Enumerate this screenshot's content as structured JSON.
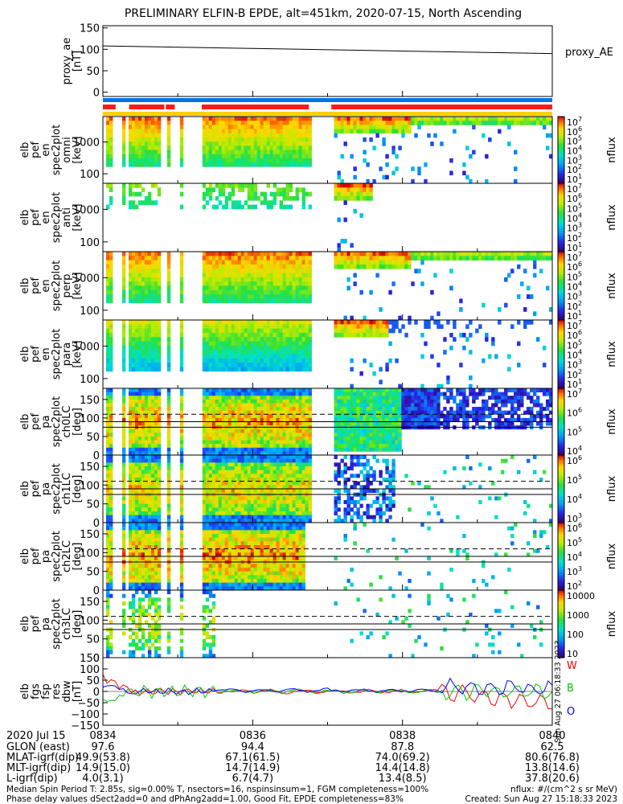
{
  "title": "PRELIMINARY ELFIN-B EPDE, alt=451km, 2020-07-15, North Ascending",
  "time_span_minutes": [
    0,
    6
  ],
  "chart_data": [
    {
      "type": "line",
      "ylabel": [
        "proxy_ae",
        "[nT]"
      ],
      "yticks": [
        "150",
        "100",
        "50",
        "0"
      ],
      "ylim": [
        -10,
        155
      ],
      "series": [
        {
          "name": "proxy_AE",
          "x": [
            0,
            6
          ],
          "values": [
            108,
            90
          ]
        }
      ]
    },
    {
      "type": "heatmap",
      "ylabel": [
        "elb",
        "pef",
        "en",
        "spec2plot",
        "omni",
        "[keV]"
      ],
      "yticks": [
        "1000",
        "100"
      ],
      "colorbar_label": "nflux",
      "colorbar_ticks": [
        "10^7",
        "10^6",
        "10^5",
        "10^4",
        "10^3",
        "10^2",
        "10^1"
      ],
      "colorbar_range": [
        1,
        7
      ],
      "colorbar_log": true
    },
    {
      "type": "heatmap",
      "ylabel": [
        "elb",
        "pef",
        "en",
        "spec2plot",
        "anti",
        "[keV]"
      ],
      "yticks": [
        "1000",
        "100"
      ],
      "colorbar_label": "nflux",
      "colorbar_ticks": [
        "10^7",
        "10^6",
        "10^5",
        "10^4",
        "10^3",
        "10^2",
        "10^1"
      ],
      "colorbar_range": [
        1,
        7
      ],
      "colorbar_log": true
    },
    {
      "type": "heatmap",
      "ylabel": [
        "elb",
        "pef",
        "en",
        "spec2plot",
        "perp",
        "[keV]"
      ],
      "yticks": [
        "1000",
        "100"
      ],
      "colorbar_label": "nflux",
      "colorbar_ticks": [
        "10^7",
        "10^6",
        "10^5",
        "10^4",
        "10^3",
        "10^2",
        "10^1"
      ],
      "colorbar_range": [
        1,
        7
      ],
      "colorbar_log": true
    },
    {
      "type": "heatmap",
      "ylabel": [
        "elb",
        "pef",
        "en",
        "spec2plot",
        "para",
        "[keV]"
      ],
      "yticks": [
        "1000",
        "100"
      ],
      "colorbar_label": "nflux",
      "colorbar_ticks": [
        "10^7",
        "10^6",
        "10^5",
        "10^4",
        "10^3",
        "10^2",
        "10^1"
      ],
      "colorbar_range": [
        1,
        7
      ],
      "colorbar_log": true
    },
    {
      "type": "heatmap",
      "ylabel": [
        "elb",
        "pef",
        "pa",
        "spec2plot",
        "ch0LC",
        "[deg]"
      ],
      "yticks": [
        "150",
        "100",
        "50",
        "0"
      ],
      "colorbar_label": "nflux",
      "colorbar_ticks": [
        "10^7",
        "10^6",
        "10^5",
        "10^4"
      ],
      "colorbar_range": [
        3.5,
        7
      ],
      "colorbar_log": true
    },
    {
      "type": "heatmap",
      "ylabel": [
        "elb",
        "pef",
        "pa",
        "spec2plot",
        "ch1LC",
        "[deg]"
      ],
      "yticks": [
        "150",
        "100",
        "50",
        "0"
      ],
      "colorbar_label": "nflux",
      "colorbar_ticks": [
        "10^6",
        "10^5",
        "10^4",
        "10^3"
      ],
      "colorbar_range": [
        2.6,
        6.4
      ],
      "colorbar_log": true
    },
    {
      "type": "heatmap",
      "ylabel": [
        "elb",
        "pef",
        "pa",
        "spec2plot",
        "ch2LC",
        "[deg]"
      ],
      "yticks": [
        "150",
        "100",
        "50",
        "0"
      ],
      "colorbar_label": "nflux",
      "colorbar_ticks": [
        "10^6",
        "10^5",
        "10^4",
        "10^3",
        "10^2"
      ],
      "colorbar_range": [
        1.8,
        6.1
      ],
      "colorbar_log": true
    },
    {
      "type": "heatmap",
      "ylabel": [
        "elb",
        "pef",
        "pa",
        "spec2plot",
        "ch3LC",
        "[deg]"
      ],
      "yticks": [
        "150",
        "100",
        "50",
        "0"
      ],
      "colorbar_label": "nflux",
      "colorbar_ticks": [
        "10000",
        "1000",
        "100",
        "10"
      ],
      "colorbar_range": [
        1,
        4.1
      ],
      "colorbar_log": true
    },
    {
      "type": "line",
      "ylabel": [
        "elb",
        "fgs",
        "fsp",
        "res",
        "dbw",
        "[nT]"
      ],
      "yticks": [
        "150",
        "100",
        "50",
        "0",
        "−50",
        "−100",
        "−150"
      ],
      "ylim": [
        -150,
        150
      ],
      "series": [
        {
          "name": "W",
          "color": "#ff0000"
        },
        {
          "name": "B",
          "color": "#00cc00"
        },
        {
          "name": "O",
          "color": "#0000ff"
        }
      ],
      "side_text": "Sun Aug 27 06:18:33 2023"
    }
  ],
  "xaxis": {
    "time_label": "2020 Jul 15",
    "times": [
      "0834",
      "0836",
      "0838",
      "0840"
    ],
    "rows": [
      {
        "label": "GLON (east)",
        "values": [
          "97.6",
          "94.4",
          "87.8",
          "62.5"
        ]
      },
      {
        "label": "MLAT-igrf(dip)",
        "values": [
          "49.9(53.8)",
          "67.1(61.5)",
          "74.0(69.2)",
          "80.6(76.8)"
        ]
      },
      {
        "label": "MLT-igrf(dip)",
        "values": [
          "14.9(15.0)",
          "14.7(14.9)",
          "14.4(14.8)",
          "13.8(14.6)"
        ]
      },
      {
        "label": "L-igrf(dip)",
        "values": [
          "4.0(3.1)",
          "6.7(4.7)",
          "13.4(8.5)",
          "37.8(20.6)"
        ]
      }
    ]
  },
  "footer": {
    "line1": "Median Spin Period T: 2.85s, sig=0.00% T, nsectors=16, nspinsinsum=1, FGM completeness=100%",
    "line2": "Phase delay values dSect2add=0 and dPhAng2add=1.00, Good Fit, EPDE completeness=83%",
    "units": "nflux: #/(cm^2 s sr MeV)",
    "created": "Created: Sun Aug 27 15:18:33 2023"
  },
  "colors": {
    "blue_bar": "#0073e6",
    "red_bar": "#ff1a1a",
    "yellow_bar": "#ffd000"
  }
}
